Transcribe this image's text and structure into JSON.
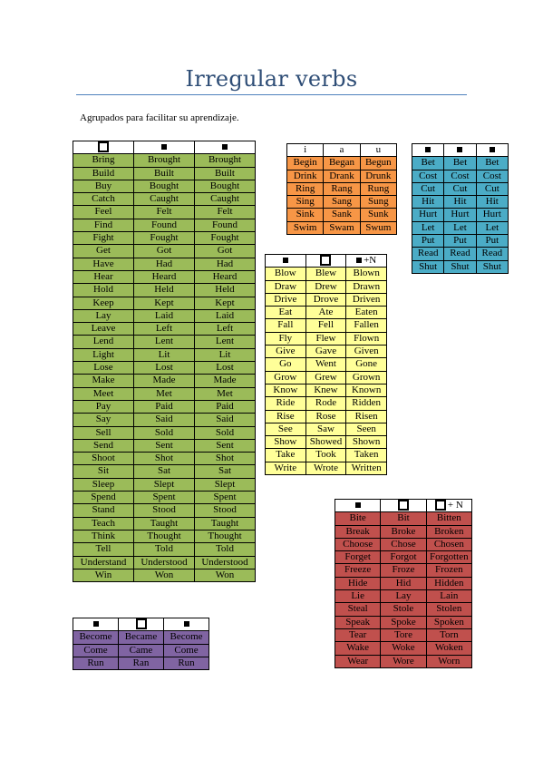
{
  "title": "Irregular verbs",
  "subtitle": "Agrupados para facilitar su aprendizaje.",
  "tables": {
    "green": {
      "header": [
        {
          "icon": "large-square-icon"
        },
        {
          "icon": "small-square-icon"
        },
        {
          "icon": "small-square-icon"
        }
      ],
      "rows": [
        [
          "Bring",
          "Brought",
          "Brought"
        ],
        [
          "Build",
          "Built",
          "Built"
        ],
        [
          "Buy",
          "Bought",
          "Bought"
        ],
        [
          "Catch",
          "Caught",
          "Caught"
        ],
        [
          "Feel",
          "Felt",
          "Felt"
        ],
        [
          "Find",
          "Found",
          "Found"
        ],
        [
          "Fight",
          "Fought",
          "Fought"
        ],
        [
          "Get",
          "Got",
          "Got"
        ],
        [
          "Have",
          "Had",
          "Had"
        ],
        [
          "Hear",
          "Heard",
          "Heard"
        ],
        [
          "Hold",
          "Held",
          "Held"
        ],
        [
          "Keep",
          "Kept",
          "Kept"
        ],
        [
          "Lay",
          "Laid",
          "Laid"
        ],
        [
          "Leave",
          "Left",
          "Left"
        ],
        [
          "Lend",
          "Lent",
          "Lent"
        ],
        [
          "Light",
          "Lit",
          "Lit"
        ],
        [
          "Lose",
          "Lost",
          "Lost"
        ],
        [
          "Make",
          "Made",
          "Made"
        ],
        [
          "Meet",
          "Met",
          "Met"
        ],
        [
          "Pay",
          "Paid",
          "Paid"
        ],
        [
          "Say",
          "Said",
          "Said"
        ],
        [
          "Sell",
          "Sold",
          "Sold"
        ],
        [
          "Send",
          "Sent",
          "Sent"
        ],
        [
          "Shoot",
          "Shot",
          "Shot"
        ],
        [
          "Sit",
          "Sat",
          "Sat"
        ],
        [
          "Sleep",
          "Slept",
          "Slept"
        ],
        [
          "Spend",
          "Spent",
          "Spent"
        ],
        [
          "Stand",
          "Stood",
          "Stood"
        ],
        [
          "Teach",
          "Taught",
          "Taught"
        ],
        [
          "Think",
          "Thought",
          "Thought"
        ],
        [
          "Tell",
          "Told",
          "Told"
        ],
        [
          "Understand",
          "Understood",
          "Understood"
        ],
        [
          "Win",
          "Won",
          "Won"
        ]
      ]
    },
    "orange": {
      "header": [
        {
          "text": "i"
        },
        {
          "text": "a"
        },
        {
          "text": "u"
        }
      ],
      "rows": [
        [
          "Begin",
          "Began",
          "Begun"
        ],
        [
          "Drink",
          "Drank",
          "Drunk"
        ],
        [
          "Ring",
          "Rang",
          "Rung"
        ],
        [
          "Sing",
          "Sang",
          "Sung"
        ],
        [
          "Sink",
          "Sank",
          "Sunk"
        ],
        [
          "Swim",
          "Swam",
          "Swum"
        ]
      ]
    },
    "blue": {
      "header": [
        {
          "icon": "small-square-icon"
        },
        {
          "icon": "small-square-icon"
        },
        {
          "icon": "small-square-icon"
        }
      ],
      "rows": [
        [
          "Bet",
          "Bet",
          "Bet"
        ],
        [
          "Cost",
          "Cost",
          "Cost"
        ],
        [
          "Cut",
          "Cut",
          "Cut"
        ],
        [
          "Hit",
          "Hit",
          "Hit"
        ],
        [
          "Hurt",
          "Hurt",
          "Hurt"
        ],
        [
          "Let",
          "Let",
          "Let"
        ],
        [
          "Put",
          "Put",
          "Put"
        ],
        [
          "Read",
          "Read",
          "Read"
        ],
        [
          "Shut",
          "Shut",
          "Shut"
        ]
      ]
    },
    "yellow": {
      "header": [
        {
          "icon": "small-square-icon"
        },
        {
          "icon": "large-square-icon"
        },
        {
          "icon": "small-square-icon",
          "suffix": "+N"
        }
      ],
      "rows": [
        [
          "Blow",
          "Blew",
          "Blown"
        ],
        [
          "Draw",
          "Drew",
          "Drawn"
        ],
        [
          "Drive",
          "Drove",
          "Driven"
        ],
        [
          "Eat",
          "Ate",
          "Eaten"
        ],
        [
          "Fall",
          "Fell",
          "Fallen"
        ],
        [
          "Fly",
          "Flew",
          "Flown"
        ],
        [
          "Give",
          "Gave",
          "Given"
        ],
        [
          "Go",
          "Went",
          "Gone"
        ],
        [
          "Grow",
          "Grew",
          "Grown"
        ],
        [
          "Know",
          "Knew",
          "Known"
        ],
        [
          "Ride",
          "Rode",
          "Ridden"
        ],
        [
          "Rise",
          "Rose",
          "Risen"
        ],
        [
          "See",
          "Saw",
          "Seen"
        ],
        [
          "Show",
          "Showed",
          "Shown"
        ],
        [
          "Take",
          "Took",
          "Taken"
        ],
        [
          "Write",
          "Wrote",
          "Written"
        ]
      ]
    },
    "red": {
      "header": [
        {
          "icon": "small-square-icon"
        },
        {
          "icon": "large-square-icon"
        },
        {
          "icon": "large-square-icon",
          "suffix": "+ N"
        }
      ],
      "rows": [
        [
          "Bite",
          "Bit",
          "Bitten"
        ],
        [
          "Break",
          "Broke",
          "Broken"
        ],
        [
          "Choose",
          "Chose",
          "Chosen"
        ],
        [
          "Forget",
          "Forgot",
          "Forgotten"
        ],
        [
          "Freeze",
          "Froze",
          "Frozen"
        ],
        [
          "Hide",
          "Hid",
          "Hidden"
        ],
        [
          "Lie",
          "Lay",
          "Lain"
        ],
        [
          "Steal",
          "Stole",
          "Stolen"
        ],
        [
          "Speak",
          "Spoke",
          "Spoken"
        ],
        [
          "Tear",
          "Tore",
          "Torn"
        ],
        [
          "Wake",
          "Woke",
          "Woken"
        ],
        [
          "Wear",
          "Wore",
          "Worn"
        ]
      ]
    },
    "purple": {
      "header": [
        {
          "icon": "small-square-icon"
        },
        {
          "icon": "large-square-icon"
        },
        {
          "icon": "small-square-icon"
        }
      ],
      "rows": [
        [
          "Become",
          "Became",
          "Become"
        ],
        [
          "Come",
          "Came",
          "Come"
        ],
        [
          "Run",
          "Ran",
          "Run"
        ]
      ]
    }
  },
  "colors": {
    "green": "#9bbb59",
    "orange": "#f79646",
    "blue": "#4bacc6",
    "yellow": "#ffff99",
    "red": "#c0504d",
    "purple": "#8064a2",
    "title": "#2e4d76"
  }
}
